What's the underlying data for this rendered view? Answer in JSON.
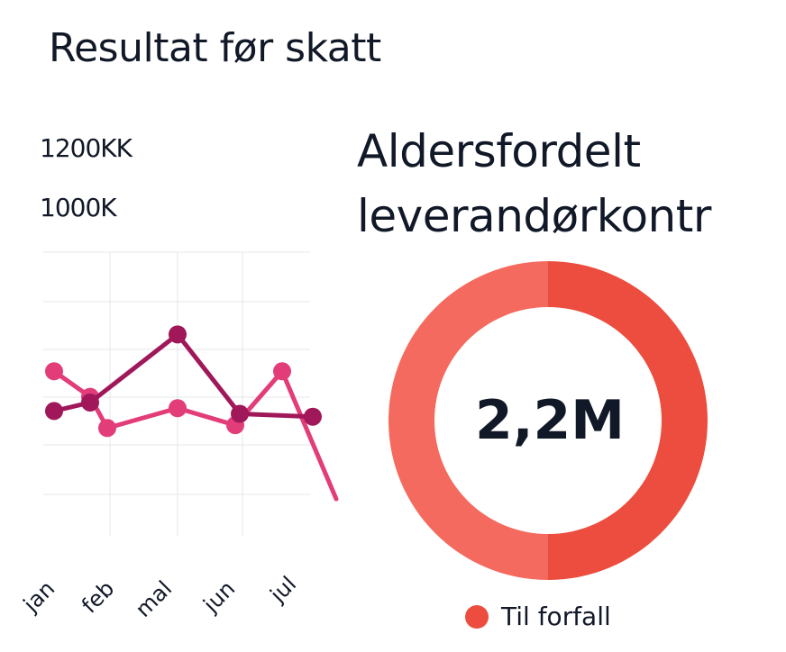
{
  "title_left": "Resultat  før skatt",
  "title_right": [
    "Aldersfordelt",
    "leverandørkontr"
  ],
  "chart_data": [
    {
      "type": "line",
      "title": "Resultat  før skatt",
      "ytick_labels": [
        "1200KK",
        "1000K"
      ],
      "categories": [
        "jan",
        "feb",
        "mal",
        "jun",
        "jul"
      ],
      "series": [
        {
          "color": "#e23d79",
          "points": [
            {
              "x": "jan",
              "y": 0.58
            },
            {
              "x": "feb",
              "y": 0.49
            },
            {
              "x": "feb",
              "y": 0.38
            },
            {
              "x": "mal",
              "y": 0.45
            },
            {
              "x": "jun",
              "y": 0.39
            },
            {
              "x": "jun",
              "y": 0.58
            },
            {
              "x": "jul",
              "y": 0.13
            }
          ]
        },
        {
          "color": "#a0175a",
          "points": [
            {
              "x": "jan",
              "y": 0.44
            },
            {
              "x": "feb",
              "y": 0.47
            },
            {
              "x": "mal",
              "y": 0.71
            },
            {
              "x": "jun",
              "y": 0.43
            },
            {
              "x": "jul",
              "y": 0.42
            }
          ]
        }
      ]
    },
    {
      "type": "pie",
      "title": "Aldersfordelt leverandørkontr",
      "center_label": "2,2M",
      "slices": [
        {
          "label": "Til forfall",
          "value": 50,
          "color": "#ec4d3e"
        },
        {
          "label": "",
          "value": 50,
          "color": "#f46a5e"
        }
      ],
      "legend": [
        {
          "label": "Til forfall",
          "color": "#ec4d3e"
        }
      ]
    }
  ]
}
